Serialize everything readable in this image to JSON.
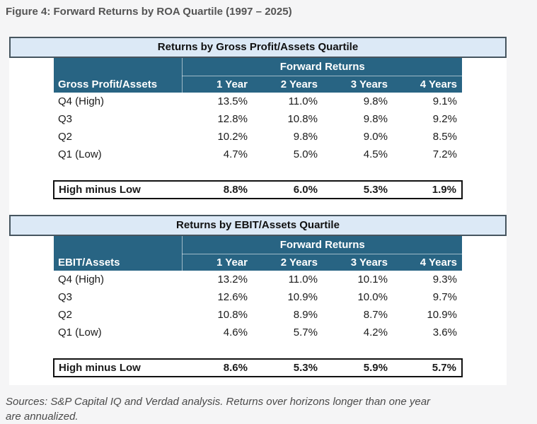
{
  "page": {
    "title": "Figure 4: Forward Returns by ROA Quartile (1997 – 2025)",
    "footer_line1": "Sources: S&P Capital IQ and Verdad analysis. Returns over horizons longer than one year",
    "footer_line2": "are annualized."
  },
  "colors": {
    "page_background": "#f5f5f6",
    "panel_background": "#ffffff",
    "header_teal": "#286483",
    "title_bar_blue": "#dce9f6",
    "title_bar_border": "#46555f",
    "summary_row_background": "#efefef",
    "summary_row_border": "#111111",
    "body_text": "#1b1b1b"
  },
  "chart_data": [
    {
      "type": "table",
      "title": "Returns by Gross Profit/Assets Quartile",
      "group_header": "Forward Returns",
      "row_header": "Gross Profit/Assets",
      "columns": [
        "1 Year",
        "2 Years",
        "3 Years",
        "4 Years"
      ],
      "unit": "%",
      "rows": [
        {
          "label": "Q4 (High)",
          "values": [
            13.5,
            11.0,
            9.8,
            9.1
          ]
        },
        {
          "label": "Q3",
          "values": [
            12.8,
            10.8,
            9.8,
            9.2
          ]
        },
        {
          "label": "Q2",
          "values": [
            10.2,
            9.8,
            9.0,
            8.5
          ]
        },
        {
          "label": "Q1 (Low)",
          "values": [
            4.7,
            5.0,
            4.5,
            7.2
          ]
        }
      ],
      "summary": {
        "label": "High minus Low",
        "values": [
          8.8,
          6.0,
          5.3,
          1.9
        ]
      }
    },
    {
      "type": "table",
      "title": "Returns by EBIT/Assets Quartile",
      "group_header": "Forward Returns",
      "row_header": "EBIT/Assets",
      "columns": [
        "1 Year",
        "2 Years",
        "3 Years",
        "4 Years"
      ],
      "unit": "%",
      "rows": [
        {
          "label": "Q4 (High)",
          "values": [
            13.2,
            11.0,
            10.1,
            9.3
          ]
        },
        {
          "label": "Q3",
          "values": [
            12.6,
            10.9,
            10.0,
            9.7
          ]
        },
        {
          "label": "Q2",
          "values": [
            10.8,
            8.9,
            8.7,
            10.9
          ]
        },
        {
          "label": "Q1 (Low)",
          "values": [
            4.6,
            5.7,
            4.2,
            3.6
          ]
        }
      ],
      "summary": {
        "label": "High minus Low",
        "values": [
          8.6,
          5.3,
          5.9,
          5.7
        ]
      }
    }
  ]
}
